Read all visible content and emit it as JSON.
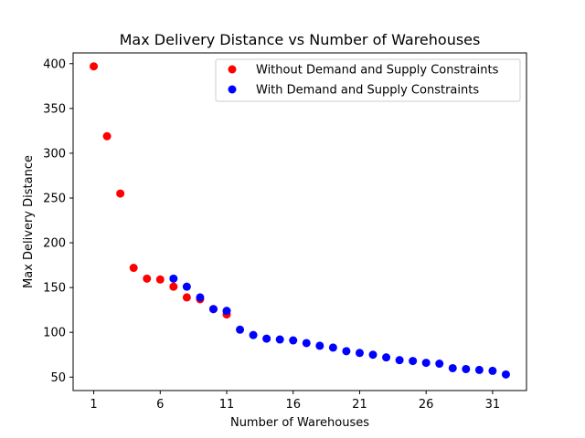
{
  "chart_data": {
    "type": "scatter",
    "title": "Max Delivery Distance vs Number of Warehouses",
    "xlabel": "Number of Warehouses",
    "ylabel": "Max Delivery Distance",
    "xlim": [
      -0.55,
      33.55
    ],
    "ylim": [
      35,
      412
    ],
    "xticks": [
      1,
      6,
      11,
      16,
      21,
      26,
      31
    ],
    "yticks": [
      50,
      100,
      150,
      200,
      250,
      300,
      350,
      400
    ],
    "grid": false,
    "legend_position": "top-right",
    "series": [
      {
        "name": "Without Demand and Supply Constraints",
        "color": "#ff0000",
        "x": [
          1,
          2,
          3,
          4,
          5,
          6,
          7,
          8,
          9,
          10,
          11
        ],
        "y": [
          397,
          319,
          255,
          172,
          160,
          159,
          151,
          139,
          137,
          126,
          120
        ]
      },
      {
        "name": "With Demand and Supply Constraints",
        "color": "#0000ff",
        "x": [
          7,
          8,
          9,
          10,
          11,
          12,
          13,
          14,
          15,
          16,
          17,
          18,
          19,
          20,
          21,
          22,
          23,
          24,
          25,
          26,
          27,
          28,
          29,
          30,
          31,
          32
        ],
        "y": [
          160,
          151,
          139,
          126,
          124,
          103,
          97,
          93,
          92,
          91,
          88,
          85,
          83,
          79,
          77,
          75,
          72,
          69,
          68,
          66,
          65,
          60,
          59,
          58,
          57,
          53
        ]
      }
    ]
  }
}
